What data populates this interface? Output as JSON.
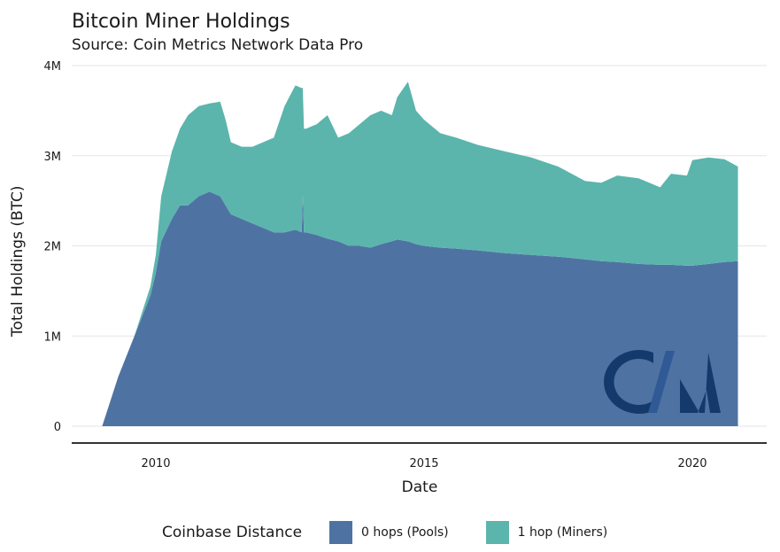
{
  "chart_data": {
    "type": "area",
    "stacked": true,
    "title": "Bitcoin Miner Holdings",
    "subtitle": "Source: Coin Metrics Network Data Pro",
    "xlabel": "Date",
    "ylabel": "Total Holdings (BTC)",
    "xlim": [
      2008.0,
      2021.5
    ],
    "ylim": [
      0,
      4000000
    ],
    "x_ticks": [
      2010,
      2015,
      2020
    ],
    "x_tick_labels": [
      "2010",
      "2015",
      "2020"
    ],
    "y_ticks": [
      0,
      1000000,
      2000000,
      3000000,
      4000000
    ],
    "y_tick_labels": [
      "0",
      "1M",
      "2M",
      "3M",
      "4M"
    ],
    "grid": true,
    "legend": {
      "title": "Coinbase Distance",
      "position": "bottom"
    },
    "watermark": "CM",
    "x": [
      2009.0,
      2009.3,
      2009.6,
      2009.9,
      2010.0,
      2010.1,
      2010.3,
      2010.45,
      2010.6,
      2010.8,
      2011.0,
      2011.2,
      2011.3,
      2011.4,
      2011.6,
      2011.8,
      2012.0,
      2012.2,
      2012.4,
      2012.6,
      2012.72,
      2012.74,
      2012.76,
      2012.8,
      2013.0,
      2013.2,
      2013.4,
      2013.6,
      2013.8,
      2014.0,
      2014.2,
      2014.4,
      2014.5,
      2014.7,
      2014.85,
      2015.0,
      2015.3,
      2015.6,
      2016.0,
      2016.5,
      2017.0,
      2017.5,
      2018.0,
      2018.3,
      2018.6,
      2019.0,
      2019.4,
      2019.6,
      2019.9,
      2020.0,
      2020.3,
      2020.6,
      2020.85
    ],
    "series": [
      {
        "name": "0 hops (Pools)",
        "color": "#4e73a3",
        "values": [
          0,
          550000,
          1000000,
          1450000,
          1700000,
          2050000,
          2300000,
          2450000,
          2450000,
          2550000,
          2600000,
          2550000,
          2450000,
          2350000,
          2300000,
          2250000,
          2200000,
          2150000,
          2150000,
          2180000,
          2150000,
          2570000,
          2150000,
          2150000,
          2120000,
          2080000,
          2050000,
          2000000,
          2000000,
          1980000,
          2020000,
          2050000,
          2070000,
          2050000,
          2020000,
          2000000,
          1980000,
          1970000,
          1950000,
          1920000,
          1900000,
          1880000,
          1850000,
          1830000,
          1820000,
          1800000,
          1790000,
          1790000,
          1780000,
          1780000,
          1800000,
          1820000,
          1830000
        ]
      },
      {
        "name": "1 hop (Miners)",
        "color": "#5bb5ac",
        "values": [
          0,
          0,
          0,
          100000,
          200000,
          500000,
          750000,
          850000,
          1000000,
          1000000,
          980000,
          1050000,
          950000,
          800000,
          800000,
          850000,
          950000,
          1050000,
          1400000,
          1600000,
          1600000,
          1180000,
          1150000,
          1150000,
          1230000,
          1370000,
          1150000,
          1250000,
          1350000,
          1470000,
          1480000,
          1400000,
          1580000,
          1770000,
          1480000,
          1400000,
          1270000,
          1230000,
          1170000,
          1130000,
          1080000,
          1000000,
          870000,
          870000,
          960000,
          950000,
          860000,
          1010000,
          1000000,
          1170000,
          1180000,
          1140000,
          1050000
        ]
      }
    ]
  }
}
